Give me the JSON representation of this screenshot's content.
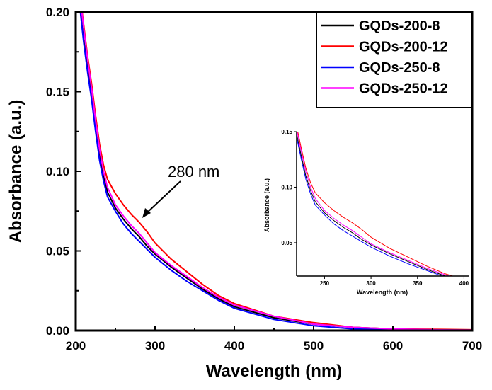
{
  "chart_data": {
    "type": "line",
    "xlabel": "Wavelength (nm)",
    "ylabel": "Absorbance (a.u.)",
    "xlim": [
      200,
      700
    ],
    "ylim": [
      0,
      0.2
    ],
    "xticks": [
      "200",
      "300",
      "400",
      "500",
      "600",
      "700"
    ],
    "yticks": [
      "0.00",
      "0.05",
      "0.10",
      "0.15",
      "0.20"
    ],
    "legend_position": "top-right",
    "annotation": "280 nm",
    "x": [
      205,
      210,
      215,
      220,
      225,
      230,
      235,
      240,
      250,
      260,
      270,
      280,
      290,
      300,
      320,
      340,
      360,
      380,
      400,
      450,
      500,
      550,
      600,
      650,
      700
    ],
    "series": [
      {
        "name": "GQDs-200-8",
        "color": "#000000",
        "values": [
          0.205,
          0.183,
          0.165,
          0.148,
          0.128,
          0.11,
          0.097,
          0.087,
          0.077,
          0.07,
          0.064,
          0.059,
          0.053,
          0.048,
          0.04,
          0.033,
          0.026,
          0.02,
          0.015,
          0.008,
          0.004,
          0.002,
          0.001,
          0.0005,
          0.0003
        ]
      },
      {
        "name": "GQDs-200-12",
        "color": "#ff0000",
        "values": [
          0.213,
          0.192,
          0.172,
          0.155,
          0.135,
          0.117,
          0.104,
          0.095,
          0.086,
          0.079,
          0.073,
          0.068,
          0.062,
          0.055,
          0.045,
          0.037,
          0.029,
          0.022,
          0.017,
          0.009,
          0.005,
          0.002,
          0.001,
          0.0008,
          0.0005
        ]
      },
      {
        "name": "GQDs-250-8",
        "color": "#0000ff",
        "values": [
          0.204,
          0.181,
          0.162,
          0.145,
          0.125,
          0.107,
          0.094,
          0.084,
          0.075,
          0.067,
          0.061,
          0.056,
          0.051,
          0.046,
          0.038,
          0.031,
          0.025,
          0.019,
          0.014,
          0.007,
          0.003,
          0.001,
          0.0005,
          0.0003,
          0.0002
        ]
      },
      {
        "name": "GQDs-250-12",
        "color": "#ff00ff",
        "values": [
          0.212,
          0.19,
          0.17,
          0.152,
          0.132,
          0.114,
          0.1,
          0.09,
          0.079,
          0.072,
          0.066,
          0.061,
          0.055,
          0.049,
          0.041,
          0.034,
          0.027,
          0.021,
          0.016,
          0.009,
          0.004,
          0.002,
          0.001,
          0.0005,
          0.0003
        ]
      }
    ],
    "inset": {
      "xlabel": "Wavelength (nm)",
      "ylabel": "Absorbance (a.u.)",
      "xlim": [
        220,
        405
      ],
      "ylim": [
        0.02,
        0.15
      ],
      "xticks": [
        "250",
        "300",
        "350",
        "400"
      ],
      "yticks": [
        "0.05",
        "0.10",
        "0.15"
      ]
    }
  }
}
